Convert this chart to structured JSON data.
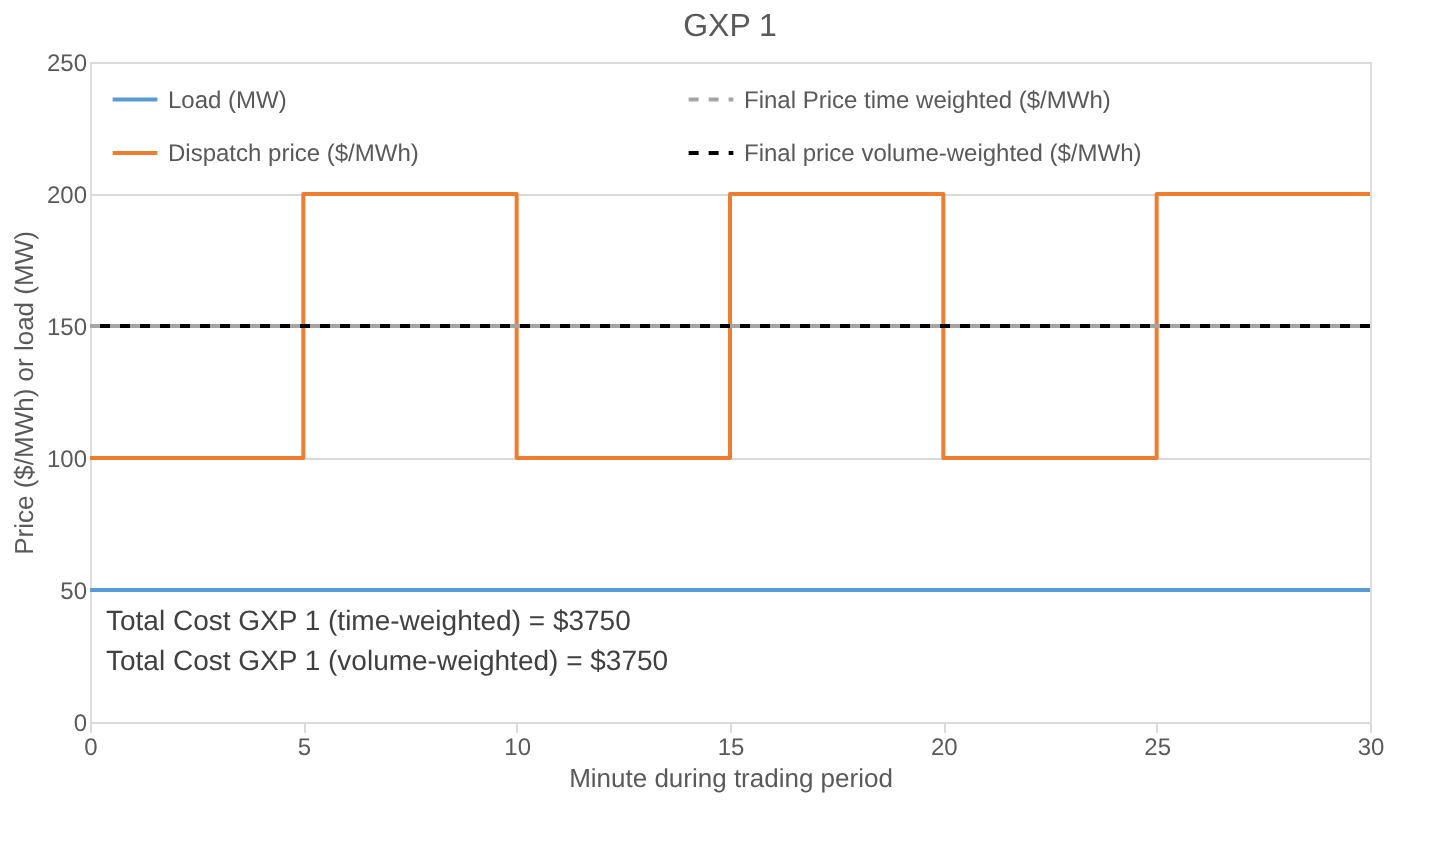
{
  "chart_data": {
    "type": "line",
    "title": "GXP 1",
    "xlabel": "Minute during trading period",
    "ylabel": "Price ($/MWh) or load (MW)",
    "series": [
      {
        "name": "Load (MW)",
        "color": "#5b9bd5",
        "line_style": "solid",
        "x": [
          0,
          30
        ],
        "values": [
          50,
          50
        ]
      },
      {
        "name": "Dispatch price ($/MWh)",
        "color": "#ed7d31",
        "type": "step",
        "line_style": "solid",
        "x": [
          0,
          5,
          10,
          15,
          20,
          25,
          30
        ],
        "values": [
          100,
          200,
          100,
          200,
          100,
          200,
          200
        ]
      },
      {
        "name": "Final Price time weighted ($/MWh)",
        "color": "#a5a5a5",
        "line_style": "dashed",
        "x": [
          0,
          30
        ],
        "values": [
          150,
          150
        ]
      },
      {
        "name": "Final price volume-weighted ($/MWh)",
        "color": "#000000",
        "line_style": "dashed",
        "x": [
          0,
          30
        ],
        "values": [
          150,
          150
        ]
      }
    ],
    "xlim": [
      0,
      30
    ],
    "xticks": [
      0,
      5,
      10,
      15,
      20,
      25,
      30
    ],
    "ylim": [
      0,
      250
    ],
    "yticks": [
      0,
      50,
      100,
      150,
      200,
      250
    ],
    "grid": "y",
    "legend": "top",
    "marker": "none",
    "annotations": [
      "Total Cost GXP 1 (time-weighted) = $3750",
      "Total Cost GXP 1 (volume-weighted) = $3750"
    ]
  }
}
